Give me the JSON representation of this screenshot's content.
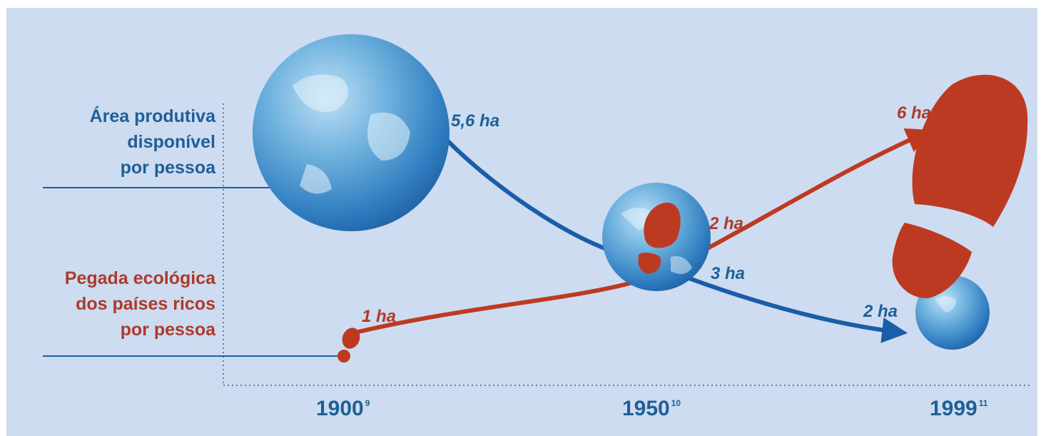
{
  "colors": {
    "background": "#cddcf0",
    "available_area": "#1a5da8",
    "footprint": "#bd3a22",
    "label_blue": "#1f5f97",
    "label_red": "#ad3a2c",
    "axis": "#5b7fa8"
  },
  "labels": {
    "available_area": [
      "Área produtiva",
      "disponível",
      "por pessoa"
    ],
    "footprint": [
      "Pegada ecológica",
      "dos países ricos",
      "por pessoa"
    ]
  },
  "years": [
    {
      "year": "1900",
      "note": "9"
    },
    {
      "year": "1950",
      "note": "10"
    },
    {
      "year": "1999",
      "note": "11"
    }
  ],
  "chart_data": {
    "type": "line",
    "x": [
      "1900",
      "1950",
      "1999"
    ],
    "series": [
      {
        "name": "Área produtiva disponível por pessoa",
        "values": [
          5.6,
          3,
          2
        ],
        "value_labels": [
          "5,6 ha",
          "3 ha",
          "2 ha"
        ],
        "marker": "globe"
      },
      {
        "name": "Pegada ecológica dos países ricos por pessoa",
        "values": [
          1,
          2,
          6
        ],
        "value_labels": [
          "1 ha",
          "2 ha",
          "6 ha"
        ],
        "marker": "footprint"
      }
    ],
    "grid": false
  }
}
